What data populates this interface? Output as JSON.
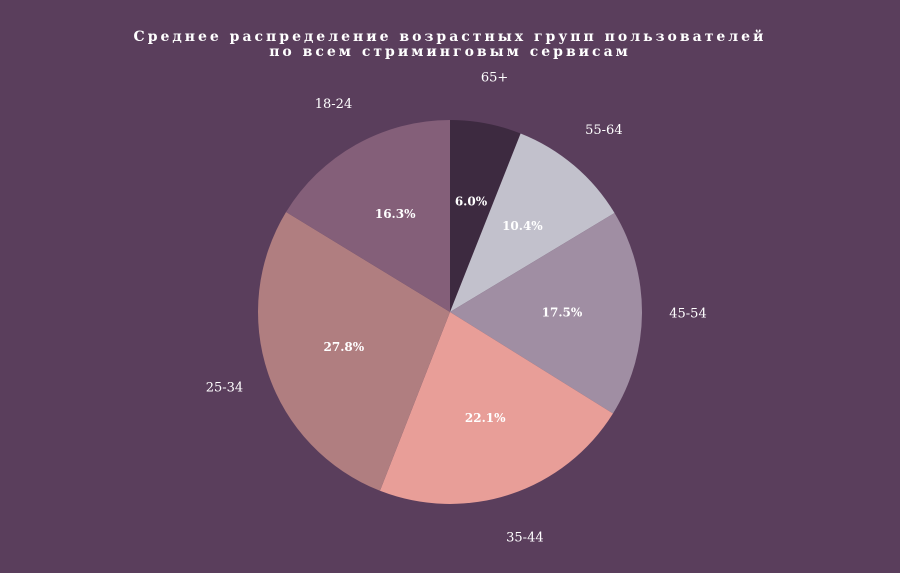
{
  "chart_data": {
    "type": "pie",
    "title_lines": [
      "Среднее распределение возрастных групп пользователей",
      "по всем стриминговым сервисам"
    ],
    "categories": [
      "65+",
      "55-64",
      "45-54",
      "35-44",
      "25-34",
      "18-24"
    ],
    "values": [
      6.0,
      10.4,
      17.5,
      22.1,
      27.8,
      16.3
    ],
    "value_labels": [
      "6.0%",
      "10.4%",
      "17.5%",
      "22.1%",
      "27.8%",
      "16.3%"
    ],
    "colors": [
      "#3d2a40",
      "#c2c1cc",
      "#a08ea3",
      "#e89e98",
      "#b07e80",
      "#845f79"
    ],
    "start": "12 o'clock",
    "direction": "clockwise",
    "legend": "none"
  },
  "style": {
    "background": "#5a3e5c",
    "text_color": "#ffffff"
  }
}
